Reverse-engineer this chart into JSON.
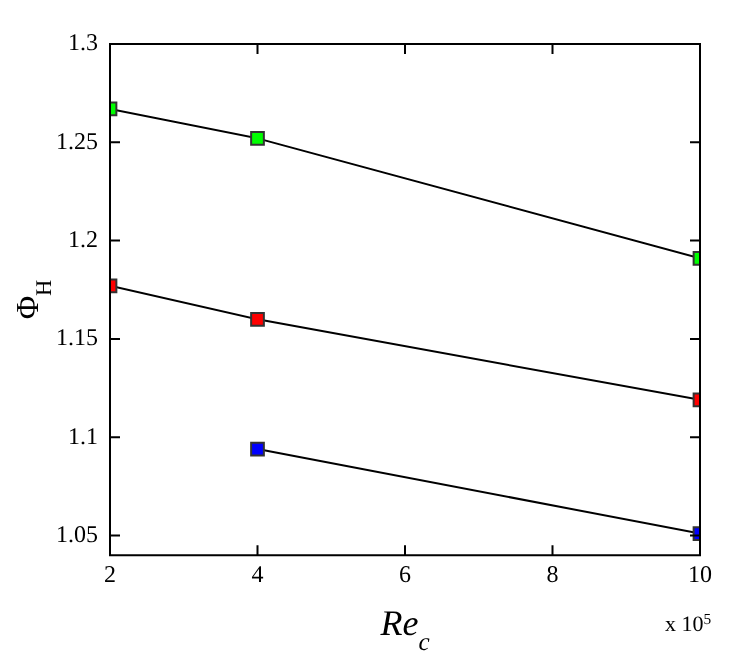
{
  "chart_data": {
    "type": "line",
    "xlabel": "Re$_{c}$",
    "ylabel": "Φ$_{H}$",
    "annotations": [
      "x 10$^{5}$"
    ],
    "series": [
      {
        "color": "#00ff00",
        "x": [
          2,
          4,
          10
        ],
        "values": [
          1.267,
          1.252,
          1.191
        ]
      },
      {
        "color": "#ff0000",
        "x": [
          2,
          4,
          10
        ],
        "values": [
          1.177,
          1.16,
          1.119
        ]
      },
      {
        "color": "#0000ff",
        "x": [
          4,
          10
        ],
        "values": [
          1.094,
          1.051
        ]
      }
    ],
    "xlim": [
      2,
      10
    ],
    "xticks": [
      2,
      4,
      6,
      8,
      10
    ],
    "ylim": [
      1.04,
      1.3
    ],
    "yticks": [
      1.05,
      1.1,
      1.15,
      1.2,
      1.25,
      1.3
    ],
    "grid": false,
    "legend": false,
    "marker": "square",
    "line_style": "solid"
  }
}
